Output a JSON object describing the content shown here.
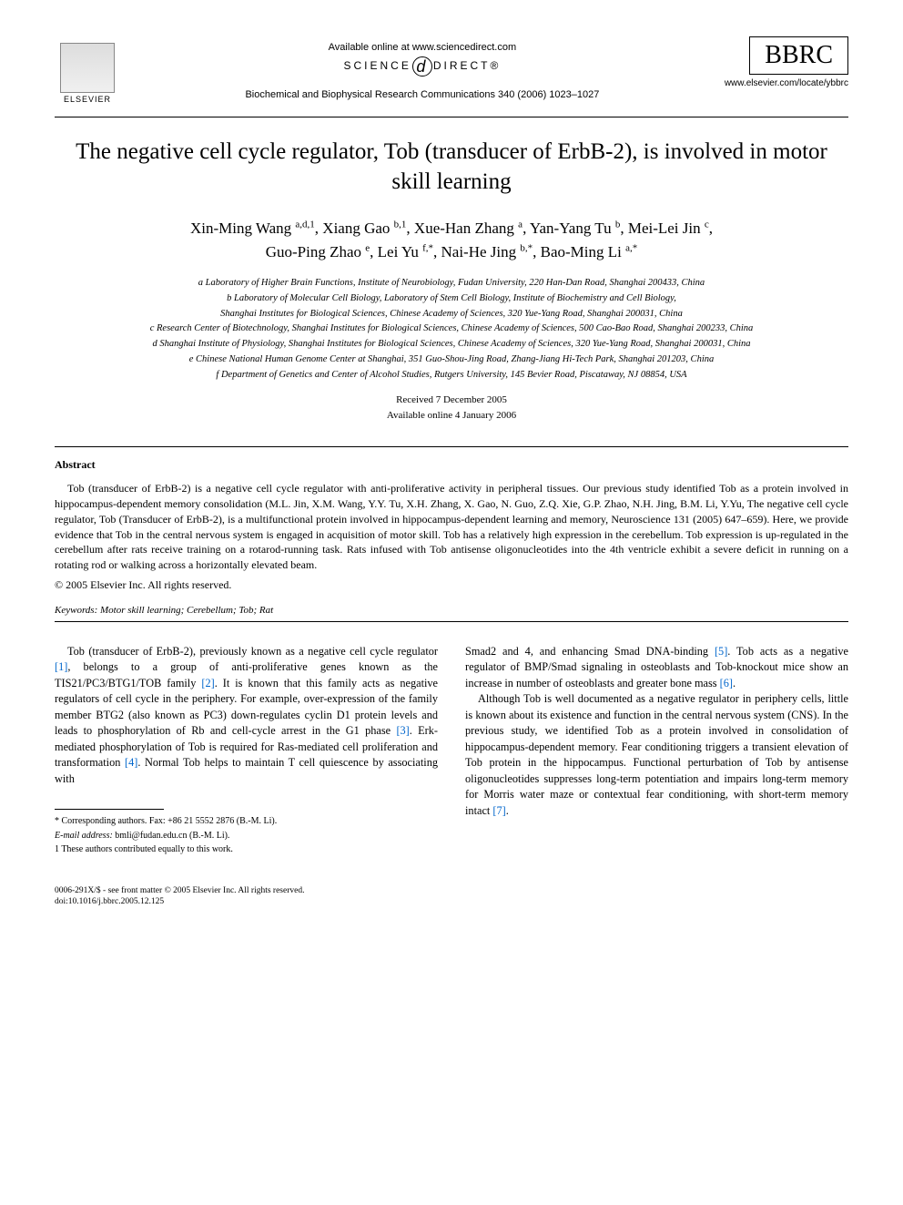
{
  "header": {
    "elsevier_label": "ELSEVIER",
    "available_online": "Available online at www.sciencedirect.com",
    "science_direct_pre": "SCIENCE",
    "science_direct_d": "d",
    "science_direct_post": "DIRECT®",
    "journal_ref": "Biochemical and Biophysical Research Communications 340 (2006) 1023–1027",
    "bbrc": "BBRC",
    "locate_url": "www.elsevier.com/locate/ybbrc"
  },
  "title": "The negative cell cycle regulator, Tob (transducer of ErbB-2), is involved in motor skill learning",
  "authors_line1": "Xin-Ming Wang ",
  "authors_sup1": "a,d,1",
  "authors_sep1": ", Xiang Gao ",
  "authors_sup2": "b,1",
  "authors_sep2": ", Xue-Han Zhang ",
  "authors_sup3": "a",
  "authors_sep3": ", Yan-Yang Tu ",
  "authors_sup4": "b",
  "authors_sep4": ", Mei-Lei Jin ",
  "authors_sup5": "c",
  "authors_sep5": ",",
  "authors_line2_1": "Guo-Ping Zhao ",
  "authors_sup6": "e",
  "authors_sep6": ", Lei Yu ",
  "authors_sup7": "f,*",
  "authors_sep7": ", Nai-He Jing ",
  "authors_sup8": "b,*",
  "authors_sep8": ", Bao-Ming Li ",
  "authors_sup9": "a,*",
  "affiliations": {
    "a": "a Laboratory of Higher Brain Functions, Institute of Neurobiology, Fudan University, 220 Han-Dan Road, Shanghai 200433, China",
    "b": "b Laboratory of Molecular Cell Biology, Laboratory of Stem Cell Biology, Institute of Biochemistry and Cell Biology,",
    "b2": "Shanghai Institutes for Biological Sciences, Chinese Academy of Sciences, 320 Yue-Yang Road, Shanghai 200031, China",
    "c": "c Research Center of Biotechnology, Shanghai Institutes for Biological Sciences, Chinese Academy of Sciences, 500 Cao-Bao Road, Shanghai 200233, China",
    "d": "d Shanghai Institute of Physiology, Shanghai Institutes for Biological Sciences, Chinese Academy of Sciences, 320 Yue-Yang Road, Shanghai 200031, China",
    "e": "e Chinese National Human Genome Center at Shanghai, 351 Guo-Shou-Jing Road, Zhang-Jiang Hi-Tech Park, Shanghai 201203, China",
    "f": "f Department of Genetics and Center of Alcohol Studies, Rutgers University, 145 Bevier Road, Piscataway, NJ 08854, USA"
  },
  "dates": {
    "received": "Received 7 December 2005",
    "online": "Available online 4 January 2006"
  },
  "abstract": {
    "heading": "Abstract",
    "text": "Tob (transducer of ErbB-2) is a negative cell cycle regulator with anti-proliferative activity in peripheral tissues. Our previous study identified Tob as a protein involved in hippocampus-dependent memory consolidation (M.L. Jin, X.M. Wang, Y.Y. Tu, X.H. Zhang, X. Gao, N. Guo, Z.Q. Xie, G.P. Zhao, N.H. Jing, B.M. Li, Y.Yu, The negative cell cycle regulator, Tob (Transducer of ErbB-2), is a multifunctional protein involved in hippocampus-dependent learning and memory, Neuroscience 131 (2005) 647–659). Here, we provide evidence that Tob in the central nervous system is engaged in acquisition of motor skill. Tob has a relatively high expression in the cerebellum. Tob expression is up-regulated in the cerebellum after rats receive training on a rotarod-running task. Rats infused with Tob antisense oligonucleotides into the 4th ventricle exhibit a severe deficit in running on a rotating rod or walking across a horizontally elevated beam.",
    "copyright": "© 2005 Elsevier Inc. All rights reserved."
  },
  "keywords": {
    "label": "Keywords:",
    "text": " Motor skill learning; Cerebellum; Tob; Rat"
  },
  "body": {
    "col1_p1_a": "Tob (transducer of ErbB-2), previously known as a negative cell cycle regulator ",
    "col1_ref1": "[1]",
    "col1_p1_b": ", belongs to a group of anti-proliferative genes known as the TIS21/PC3/BTG1/TOB family ",
    "col1_ref2": "[2]",
    "col1_p1_c": ". It is known that this family acts as negative regulators of cell cycle in the periphery. For example, over-expression of the family member BTG2 (also known as PC3) down-regulates cyclin D1 protein levels and leads to phosphorylation of Rb and cell-cycle arrest in the G1 phase ",
    "col1_ref3": "[3]",
    "col1_p1_d": ". Erk-mediated phosphorylation of Tob is required for Ras-mediated cell proliferation and transformation ",
    "col1_ref4": "[4]",
    "col1_p1_e": ". Normal Tob helps to maintain T cell quiescence by associating with",
    "col2_p1_a": "Smad2 and 4, and enhancing Smad DNA-binding ",
    "col2_ref5": "[5]",
    "col2_p1_b": ". Tob acts as a negative regulator of BMP/Smad signaling in osteoblasts and Tob-knockout mice show an increase in number of osteoblasts and greater bone mass ",
    "col2_ref6": "[6]",
    "col2_p1_c": ".",
    "col2_p2_a": "Although Tob is well documented as a negative regulator in periphery cells, little is known about its existence and function in the central nervous system (CNS). In the previous study, we identified Tob as a protein involved in consolidation of hippocampus-dependent memory. Fear conditioning triggers a transient elevation of Tob protein in the hippocampus. Functional perturbation of Tob by antisense oligonucleotides suppresses long-term potentiation and impairs long-term memory for Morris water maze or contextual fear conditioning, with short-term memory intact ",
    "col2_ref7": "[7]",
    "col2_p2_b": "."
  },
  "footnotes": {
    "corresponding": "* Corresponding authors. Fax: +86 21 5552 2876 (B.-M. Li).",
    "email_label": "E-mail address:",
    "email": " bmli@fudan.edu.cn (B.-M. Li).",
    "equal": "1 These authors contributed equally to this work."
  },
  "footer": {
    "line1": "0006-291X/$ - see front matter © 2005 Elsevier Inc. All rights reserved.",
    "line2": "doi:10.1016/j.bbrc.2005.12.125"
  },
  "colors": {
    "text": "#000000",
    "background": "#ffffff",
    "link": "#0066cc"
  }
}
